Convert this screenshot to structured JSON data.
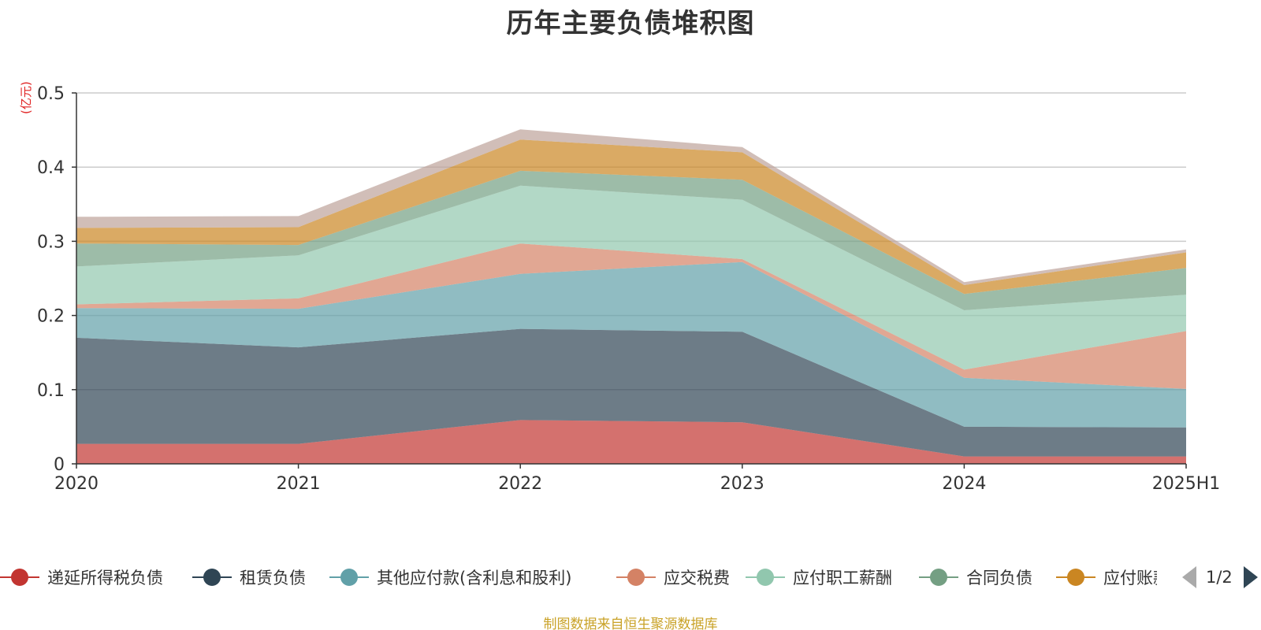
{
  "chart_data": {
    "type": "area",
    "stacked": true,
    "title": "历年主要负债堆积图",
    "unit": "(亿元)",
    "categories": [
      "2020",
      "2021",
      "2022",
      "2023",
      "2024",
      "2025H1"
    ],
    "y_ticks": [
      "0",
      "0.1",
      "0.2",
      "0.3",
      "0.4",
      "0.5"
    ],
    "ylim": [
      0,
      0.5
    ],
    "grid": true,
    "legend_position": "bottom",
    "series": [
      {
        "name": "递延所得税负债",
        "color": "#c23531",
        "values": [
          0.027,
          0.027,
          0.059,
          0.056,
          0.01,
          0.01
        ]
      },
      {
        "name": "租赁负债",
        "color": "#2f4554",
        "values": [
          0.143,
          0.13,
          0.123,
          0.122,
          0.04,
          0.039
        ]
      },
      {
        "name": "其他应付款(含利息和股利)",
        "color": "#61a0a8",
        "values": [
          0.04,
          0.052,
          0.074,
          0.094,
          0.066,
          0.052
        ]
      },
      {
        "name": "应交税费",
        "color": "#d48265",
        "values": [
          0.005,
          0.014,
          0.041,
          0.004,
          0.011,
          0.078
        ]
      },
      {
        "name": "应付职工薪酬",
        "color": "#91c7ae",
        "values": [
          0.051,
          0.058,
          0.078,
          0.08,
          0.08,
          0.049
        ]
      },
      {
        "name": "合同负债",
        "color": "#749f83",
        "values": [
          0.031,
          0.014,
          0.02,
          0.027,
          0.022,
          0.036
        ]
      },
      {
        "name": "应付账款",
        "color": "#ca8622",
        "values": [
          0.021,
          0.024,
          0.042,
          0.037,
          0.012,
          0.021
        ]
      },
      {
        "name": "",
        "color": "#bda29a",
        "values": [
          0.015,
          0.015,
          0.014,
          0.007,
          0.004,
          0.004
        ]
      }
    ],
    "legend_labels": [
      "递延所得税负债",
      "租赁负债",
      "其他应付款(含利息和股利)",
      "应交税费",
      "应付职工薪酬",
      "合同负债",
      "应付账款"
    ],
    "pager": "1/2",
    "source": "制图数据来自恒生聚源数据库"
  }
}
